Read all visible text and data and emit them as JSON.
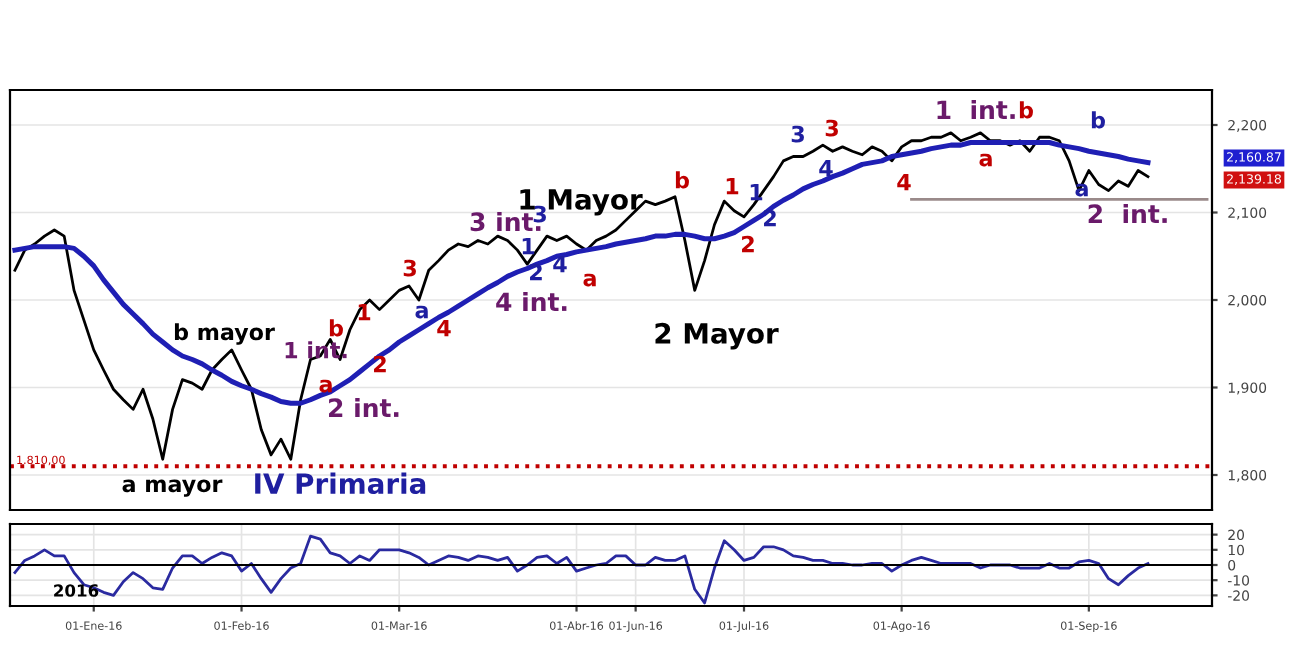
{
  "chart_data": [
    {
      "type": "line",
      "categories": [
        null,
        null,
        null,
        null,
        null,
        null,
        null,
        null,
        null,
        null,
        null,
        null,
        null,
        null,
        null,
        null,
        null,
        null,
        null,
        null,
        null,
        null,
        null,
        null,
        null,
        null,
        null,
        null,
        null,
        null,
        null,
        null,
        null,
        null,
        null,
        null,
        null,
        null,
        null,
        null,
        null,
        null,
        null,
        null,
        null,
        null,
        null,
        null,
        null,
        null,
        null,
        null,
        null,
        null,
        null,
        null,
        null,
        null,
        null,
        null,
        null,
        null,
        null,
        null,
        null,
        null,
        null,
        null,
        null,
        null,
        null,
        null,
        null,
        null,
        null,
        null,
        null,
        null,
        null,
        null,
        null,
        null,
        null,
        null,
        null,
        null,
        null,
        null,
        null,
        null,
        null,
        null,
        null,
        null,
        null,
        null,
        null,
        null,
        null,
        null,
        null,
        null,
        null,
        null,
        null,
        null,
        null,
        null,
        null,
        null,
        null,
        null,
        null,
        null,
        null,
        null,
        null,
        null,
        null,
        null,
        null,
        null
      ],
      "series": [
        {
          "color": "#000000",
          "values": [
            2034,
            2057,
            2064,
            2073,
            2080,
            2073,
            2011,
            1977,
            1943,
            1920,
            1898,
            1886,
            1875,
            1898,
            1864,
            1818,
            1875,
            1909,
            1905,
            1898,
            1920,
            1932,
            1943,
            1920,
            1898,
            1852,
            1823,
            1841,
            1818,
            1886,
            1932,
            1936,
            1955,
            1932,
            1966,
            1989,
            2000,
            1989,
            2000,
            2011,
            2016,
            2000,
            2034,
            2045,
            2057,
            2064,
            2061,
            2068,
            2064,
            2073,
            2068,
            2057,
            2041,
            2057,
            2073,
            2068,
            2073,
            2064,
            2057,
            2068,
            2073,
            2080,
            2091,
            2102,
            2113,
            2109,
            2113,
            2118,
            2068,
            2011,
            2045,
            2086,
            2113,
            2102,
            2095,
            2109,
            2125,
            2141,
            2159,
            2164,
            2164,
            2170,
            2177,
            2170,
            2175,
            2170,
            2166,
            2175,
            2170,
            2159,
            2175,
            2182,
            2182,
            2186,
            2186,
            2191,
            2182,
            2186,
            2191,
            2182,
            2182,
            2177,
            2182,
            2170,
            2186,
            2186,
            2182,
            2159,
            2125,
            2148,
            2132,
            2125,
            2136,
            2130,
            2148,
            2141,
            null,
            null,
            null,
            null,
            null,
            null
          ]
        },
        {
          "color": "#1f1fb4",
          "values": [
            2057,
            2059,
            2061,
            2061,
            2061,
            2061,
            2059,
            2050,
            2039,
            2023,
            2009,
            1995,
            1984,
            1973,
            1961,
            1952,
            1943,
            1936,
            1932,
            1927,
            1920,
            1914,
            1907,
            1902,
            1898,
            1893,
            1889,
            1884,
            1882,
            1882,
            1886,
            1891,
            1895,
            1902,
            1909,
            1918,
            1927,
            1936,
            1943,
            1952,
            1959,
            1966,
            1973,
            1980,
            1986,
            1993,
            2000,
            2007,
            2014,
            2020,
            2027,
            2032,
            2036,
            2041,
            2045,
            2050,
            2052,
            2055,
            2057,
            2059,
            2061,
            2064,
            2066,
            2068,
            2070,
            2073,
            2073,
            2075,
            2075,
            2073,
            2070,
            2070,
            2073,
            2077,
            2084,
            2091,
            2098,
            2107,
            2114,
            2120,
            2127,
            2132,
            2136,
            2141,
            2145,
            2150,
            2155,
            2157,
            2159,
            2164,
            2166,
            2168,
            2170,
            2173,
            2175,
            2177,
            2177,
            2180,
            2180,
            2180,
            2180,
            2180,
            2180,
            2180,
            2180,
            2180,
            2177,
            2175,
            2173,
            2170,
            2168,
            2166,
            2164,
            2161,
            2159,
            2157,
            null,
            null,
            null,
            null,
            null,
            null
          ]
        },
        {
          "color": "#9a8a8a",
          "values": [
            null,
            null,
            null,
            null,
            null,
            null,
            null,
            null,
            null,
            null,
            null,
            null,
            null,
            null,
            null,
            null,
            null,
            null,
            null,
            null,
            null,
            null,
            null,
            null,
            null,
            null,
            null,
            null,
            null,
            null,
            null,
            null,
            null,
            null,
            null,
            null,
            null,
            null,
            null,
            null,
            null,
            null,
            null,
            null,
            null,
            null,
            null,
            null,
            null,
            null,
            null,
            null,
            null,
            null,
            null,
            null,
            null,
            null,
            null,
            null,
            null,
            null,
            null,
            null,
            null,
            null,
            null,
            null,
            null,
            null,
            null,
            null,
            null,
            null,
            null,
            null,
            null,
            null,
            null,
            null,
            null,
            null,
            null,
            null,
            null,
            null,
            null,
            null,
            null,
            null,
            null,
            2115,
            2115,
            2115,
            2115,
            2115,
            2115,
            2115,
            2115,
            2115,
            2115,
            2115,
            2115,
            2115,
            2115,
            2115,
            2115,
            2115,
            2115,
            2115,
            2115,
            2115,
            2115,
            2115,
            2115,
            2115,
            2115,
            2115,
            2115,
            2115,
            2115,
            2115
          ]
        }
      ],
      "ylim": [
        1760,
        2240
      ],
      "yticks": [
        {
          "value": 1800,
          "label": "1,800"
        },
        {
          "value": 1900,
          "label": "1,900"
        },
        {
          "value": 2000,
          "label": "2,000"
        },
        {
          "value": 2100,
          "label": "2,100"
        },
        {
          "value": 2200,
          "label": "2,200"
        }
      ],
      "ref_lines": [
        {
          "axis": "y",
          "value": 1810,
          "label": "1.810,00",
          "color": "#c00000",
          "line_style": "dotted"
        }
      ],
      "annotations": [
        "b mayor",
        "a mayor",
        "IV Primaria",
        "1 int.",
        "2 int.",
        "1",
        "b",
        "a",
        "2",
        "3",
        "a",
        "4",
        "3 int.",
        "3",
        "1",
        "2",
        "4",
        "4 int.",
        "1 Mayor",
        "a",
        "b",
        "1",
        "1",
        "2",
        "2",
        "2 Mayor",
        "3",
        "3",
        "4",
        "4",
        "1  int.",
        "b",
        "a",
        "b",
        "a",
        "2  int.",
        "2,160.87",
        "2,139.18"
      ],
      "grid": true,
      "legend": false,
      "marker": "none",
      "line_style": "solid",
      "tick_labels": "y"
    },
    {
      "type": "line",
      "categories": [
        null,
        null,
        null,
        null,
        null,
        null,
        null,
        null,
        "01-Ene-16",
        null,
        null,
        null,
        null,
        null,
        null,
        null,
        null,
        null,
        null,
        null,
        null,
        null,
        null,
        "01-Feb-16",
        null,
        null,
        null,
        null,
        null,
        null,
        null,
        null,
        null,
        null,
        null,
        null,
        null,
        null,
        null,
        "01-Mar-16",
        null,
        null,
        null,
        null,
        null,
        null,
        null,
        null,
        null,
        null,
        null,
        null,
        null,
        null,
        null,
        null,
        null,
        "01-Abr-16",
        null,
        null,
        null,
        null,
        null,
        "01-Jun-16",
        null,
        null,
        null,
        null,
        null,
        null,
        null,
        null,
        null,
        null,
        "01-Jul-16",
        null,
        null,
        null,
        null,
        null,
        null,
        null,
        null,
        null,
        null,
        null,
        null,
        null,
        null,
        null,
        "01-Ago-16",
        null,
        null,
        null,
        null,
        null,
        null,
        null,
        null,
        null,
        null,
        null,
        null,
        null,
        null,
        null,
        null,
        null,
        null,
        "01-Sep-16",
        null,
        null,
        null,
        null,
        null,
        null,
        null,
        null,
        null,
        null,
        null,
        null
      ],
      "series": [
        {
          "color": "#2a2aa0",
          "values": [
            -5,
            3,
            6,
            10,
            6,
            6,
            -5,
            -13,
            -15,
            -18,
            -20,
            -11,
            -5,
            -9,
            -15,
            -16,
            -2,
            6,
            6,
            1,
            5,
            8,
            6,
            -4,
            1,
            -9,
            -18,
            -9,
            -2,
            1,
            19,
            17,
            8,
            6,
            1,
            6,
            3,
            10,
            10,
            10,
            8,
            5,
            0,
            3,
            6,
            5,
            3,
            6,
            5,
            3,
            5,
            -4,
            0,
            5,
            6,
            1,
            5,
            -4,
            -2,
            0,
            1,
            6,
            6,
            0,
            0,
            5,
            3,
            3,
            6,
            -16,
            -25,
            -2,
            16,
            10,
            3,
            5,
            12,
            12,
            10,
            6,
            5,
            3,
            3,
            1,
            1,
            0,
            0,
            1,
            1,
            -4,
            0,
            3,
            5,
            3,
            1,
            1,
            1,
            1,
            -2,
            0,
            0,
            0,
            -2,
            -2,
            -2,
            1,
            -2,
            -2,
            2,
            3,
            1,
            -9,
            -13,
            -7,
            -2,
            1,
            null,
            null,
            null,
            null,
            null,
            null
          ]
        }
      ],
      "ylim": [
        -27,
        27
      ],
      "yticks": [
        -20,
        -10,
        0,
        10,
        20
      ],
      "ref_lines": [
        {
          "axis": "y",
          "value": 0,
          "color": "#000000",
          "line_style": "solid"
        }
      ],
      "annotations": [
        "2016"
      ],
      "grid": true,
      "legend": false,
      "marker": "none",
      "line_style": "solid"
    }
  ]
}
